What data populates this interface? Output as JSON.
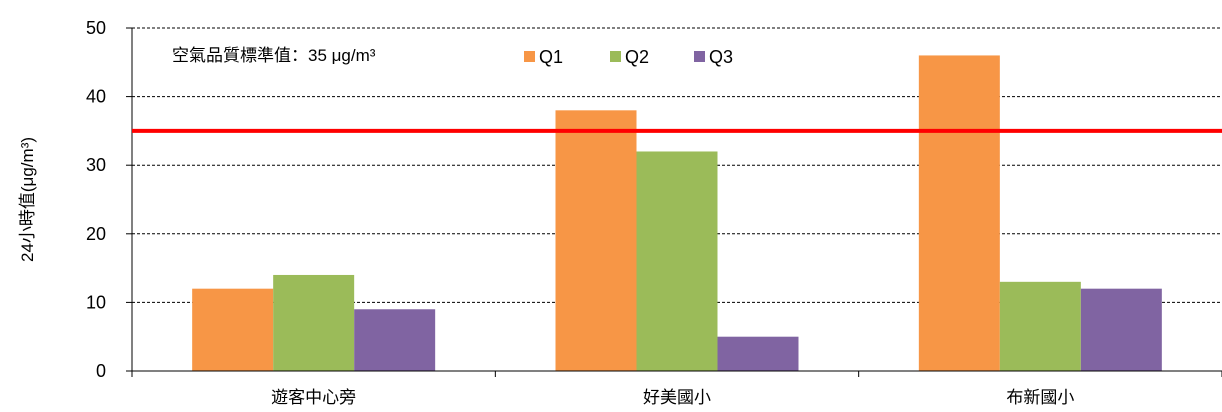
{
  "chart_data": {
    "type": "bar",
    "categories": [
      "遊客中心旁",
      "好美國小",
      "布新國小"
    ],
    "series": [
      {
        "name": "Q1",
        "values": [
          12,
          38,
          46
        ],
        "color": "#F79646"
      },
      {
        "name": "Q2",
        "values": [
          14,
          32,
          13
        ],
        "color": "#9BBB59"
      },
      {
        "name": "Q3",
        "values": [
          9,
          5,
          12
        ],
        "color": "#8064A2"
      }
    ],
    "ylabel": "24小時值(μg/m³)",
    "ylim": [
      0,
      50
    ],
    "yticks": [
      0,
      10,
      20,
      30,
      40,
      50
    ],
    "grid": true,
    "legend": "top-center",
    "reference_line": {
      "value": 35,
      "color": "#FF0000",
      "label": "空氣品質標準值：35 μg/m³"
    }
  }
}
